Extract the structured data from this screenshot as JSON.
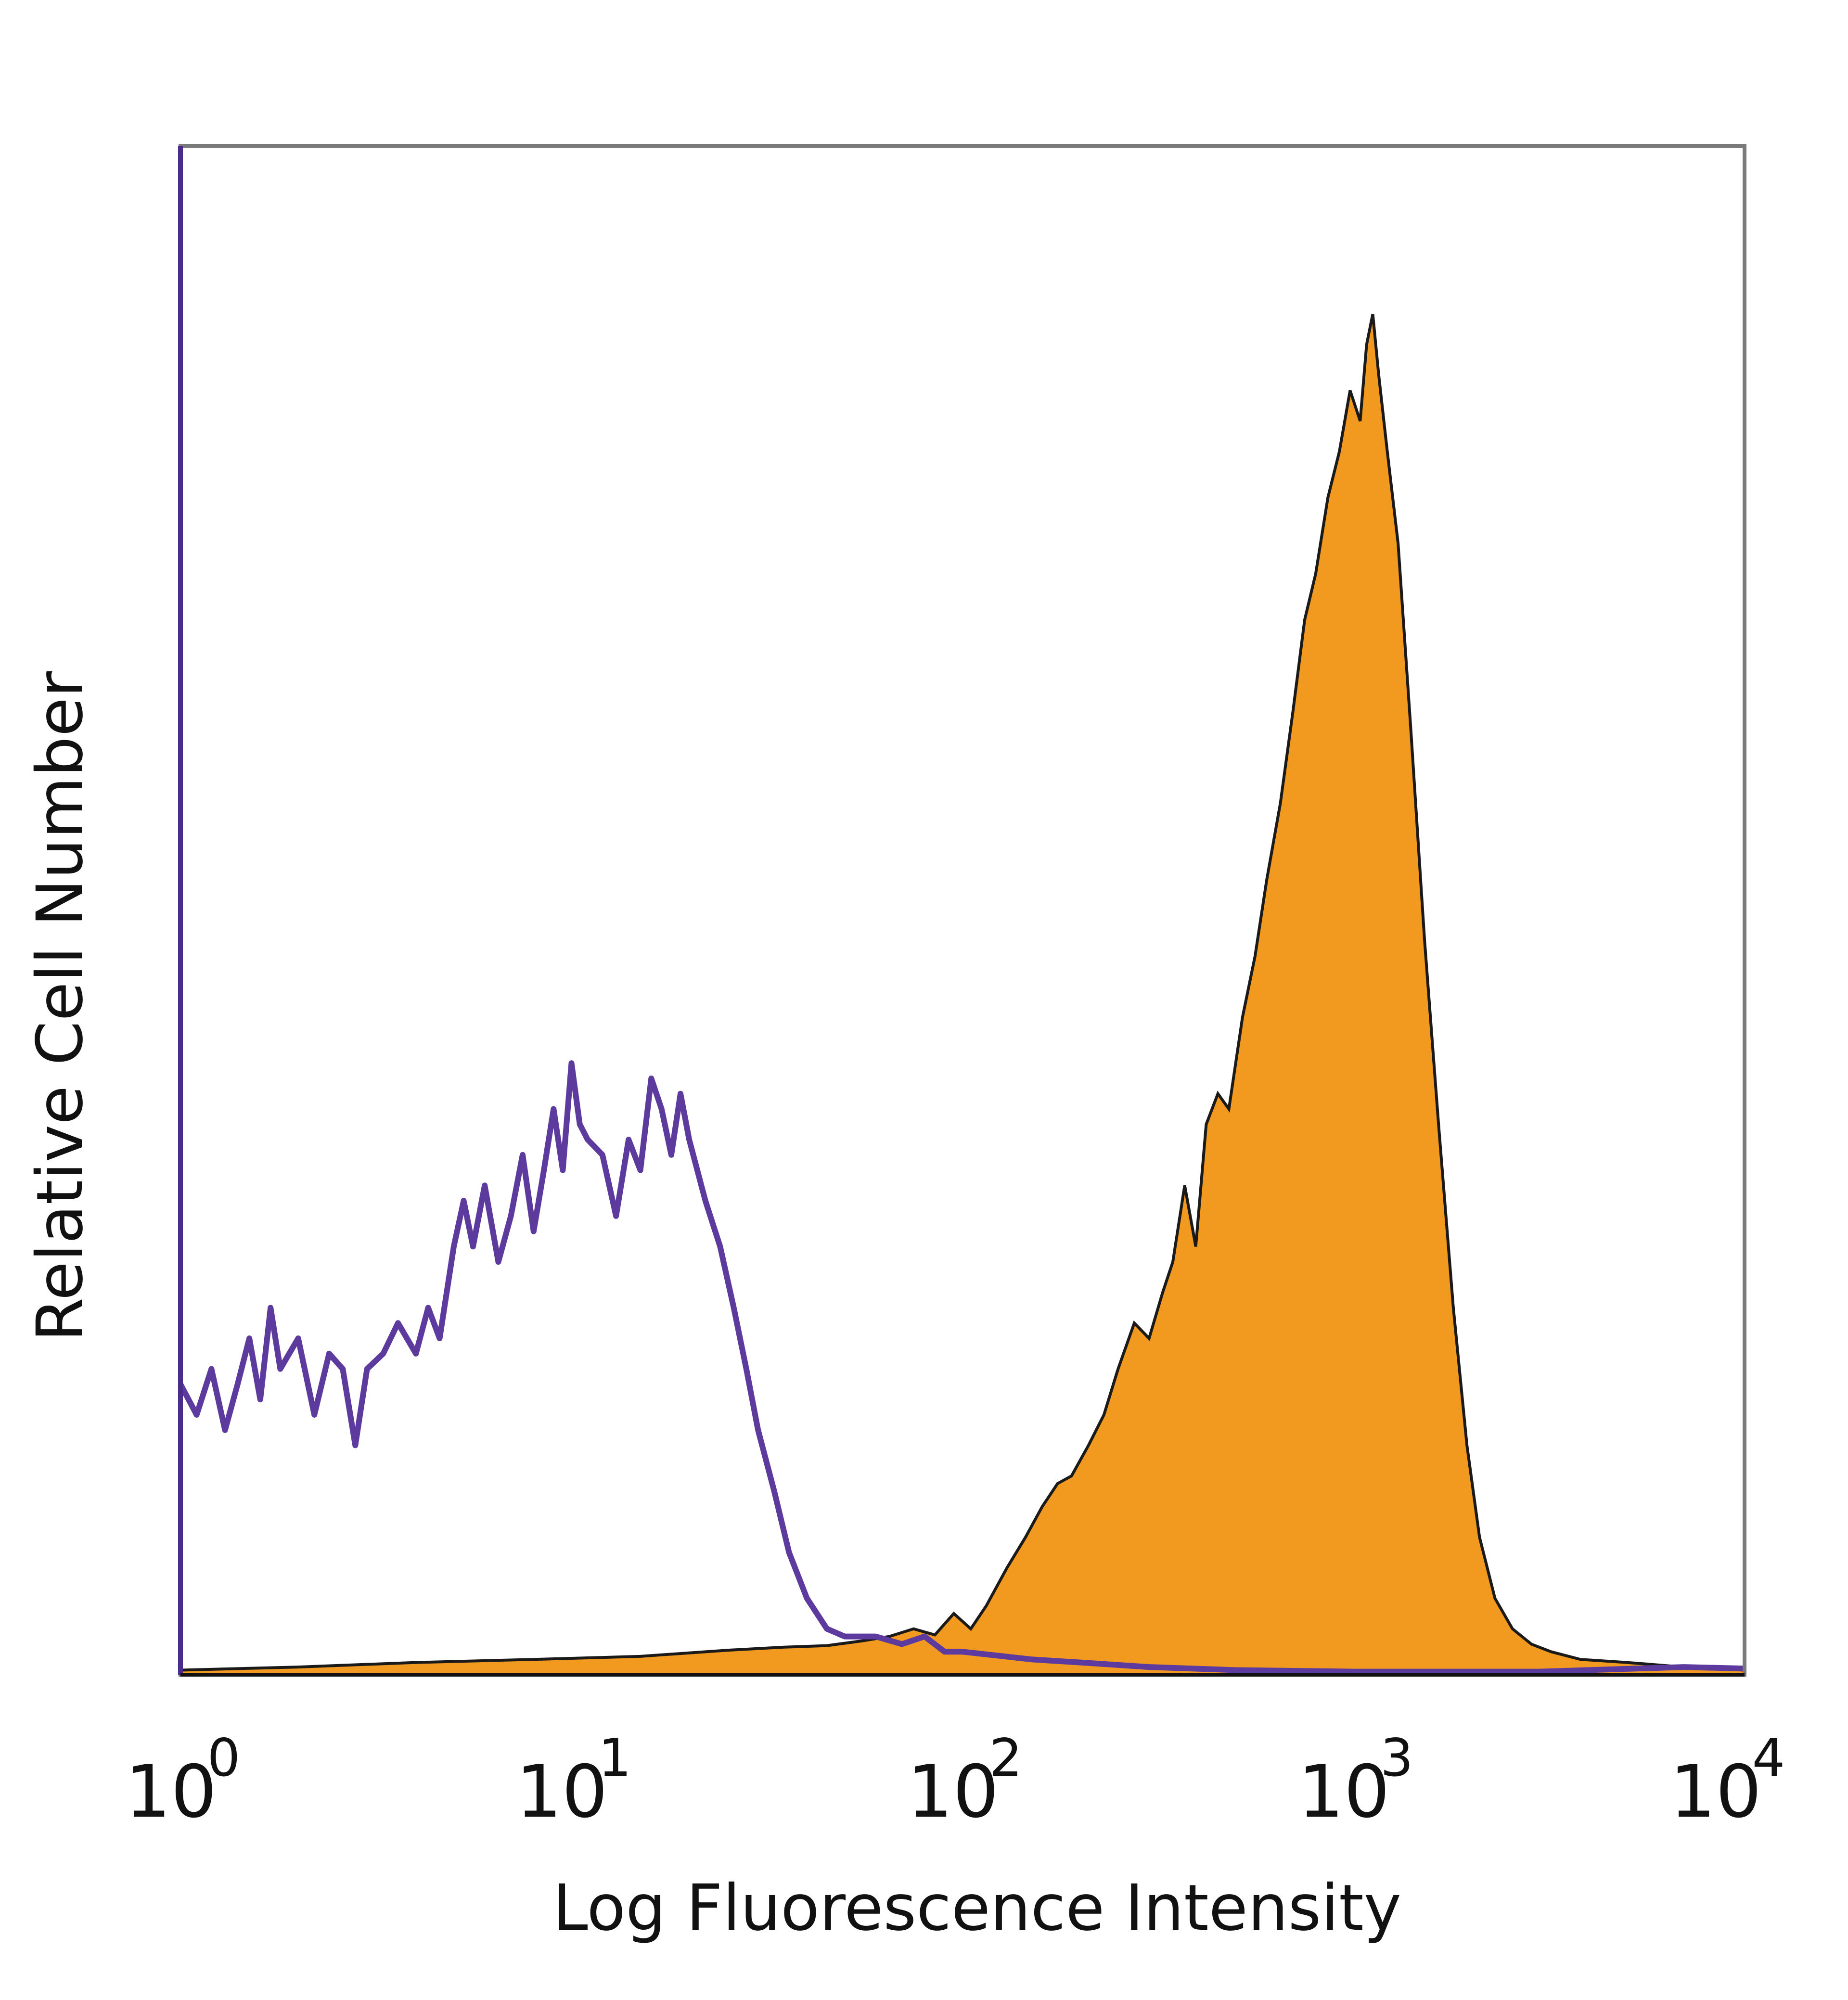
{
  "chart_data": {
    "type": "area",
    "xlabel": "Log Fluorescence Intensity",
    "ylabel": "Relative Cell Number",
    "xscale": "log",
    "xlim": [
      1,
      10000
    ],
    "ylim": [
      0,
      100
    ],
    "grid": false,
    "legend": "none",
    "x_ticks": [
      {
        "value": 1,
        "base": "10",
        "exp": "0"
      },
      {
        "value": 10,
        "base": "10",
        "exp": "1"
      },
      {
        "value": 100,
        "base": "10",
        "exp": "2"
      },
      {
        "value": 1000,
        "base": "10",
        "exp": "3"
      },
      {
        "value": 10000,
        "base": "10",
        "exp": "4"
      }
    ],
    "series": [
      {
        "style": "filled",
        "color": "#F29A1F",
        "outline_color": "#1a1a1a",
        "points": [
          [
            1.0,
            0.3
          ],
          [
            2.0,
            0.5
          ],
          [
            4.0,
            0.8
          ],
          [
            8.0,
            1.0
          ],
          [
            15.0,
            1.2
          ],
          [
            25.0,
            1.6
          ],
          [
            35.0,
            1.8
          ],
          [
            45.0,
            1.9
          ],
          [
            55.0,
            2.2
          ],
          [
            65.0,
            2.5
          ],
          [
            75.0,
            3.0
          ],
          [
            85.0,
            2.6
          ],
          [
            95.0,
            4.0
          ],
          [
            105.0,
            3.0
          ],
          [
            115.0,
            4.5
          ],
          [
            130.0,
            7.0
          ],
          [
            145.0,
            9.0
          ],
          [
            160.0,
            11.0
          ],
          [
            175.0,
            12.5
          ],
          [
            190.0,
            13.0
          ],
          [
            210.0,
            15.0
          ],
          [
            230.0,
            17.0
          ],
          [
            250.0,
            20.0
          ],
          [
            275.0,
            23.0
          ],
          [
            300.0,
            22.0
          ],
          [
            325.0,
            25.0
          ],
          [
            345.0,
            27.0
          ],
          [
            370.0,
            32.0
          ],
          [
            395.0,
            28.0
          ],
          [
            420.0,
            36.0
          ],
          [
            450.0,
            38.0
          ],
          [
            480.0,
            37.0
          ],
          [
            520.0,
            43.0
          ],
          [
            560.0,
            47.0
          ],
          [
            600.0,
            52.0
          ],
          [
            650.0,
            57.0
          ],
          [
            700.0,
            63.0
          ],
          [
            750.0,
            69.0
          ],
          [
            800.0,
            72.0
          ],
          [
            860.0,
            77.0
          ],
          [
            920.0,
            80.0
          ],
          [
            980.0,
            84.0
          ],
          [
            1040.0,
            82.0
          ],
          [
            1080.0,
            87.0
          ],
          [
            1120.0,
            89.0
          ],
          [
            1160.0,
            85.0
          ],
          [
            1220.0,
            80.0
          ],
          [
            1300.0,
            74.0
          ],
          [
            1400.0,
            62.0
          ],
          [
            1520.0,
            48.0
          ],
          [
            1650.0,
            36.0
          ],
          [
            1800.0,
            24.0
          ],
          [
            1950.0,
            15.0
          ],
          [
            2100.0,
            9.0
          ],
          [
            2300.0,
            5.0
          ],
          [
            2550.0,
            3.0
          ],
          [
            2850.0,
            2.0
          ],
          [
            3200.0,
            1.5
          ],
          [
            3800.0,
            1.0
          ],
          [
            5000.0,
            0.8
          ],
          [
            7000.0,
            0.5
          ],
          [
            10000.0,
            0.3
          ]
        ]
      },
      {
        "style": "line",
        "color": "#5C3A9E",
        "points": [
          [
            1.0,
            19.0
          ],
          [
            1.1,
            17.0
          ],
          [
            1.2,
            20.0
          ],
          [
            1.3,
            16.0
          ],
          [
            1.4,
            19.0
          ],
          [
            1.5,
            22.0
          ],
          [
            1.6,
            18.0
          ],
          [
            1.7,
            24.0
          ],
          [
            1.8,
            20.0
          ],
          [
            2.0,
            22.0
          ],
          [
            2.2,
            17.0
          ],
          [
            2.4,
            21.0
          ],
          [
            2.6,
            20.0
          ],
          [
            2.8,
            15.0
          ],
          [
            3.0,
            20.0
          ],
          [
            3.3,
            21.0
          ],
          [
            3.6,
            23.0
          ],
          [
            4.0,
            21.0
          ],
          [
            4.3,
            24.0
          ],
          [
            4.6,
            22.0
          ],
          [
            5.0,
            28.0
          ],
          [
            5.3,
            31.0
          ],
          [
            5.6,
            28.0
          ],
          [
            6.0,
            32.0
          ],
          [
            6.5,
            27.0
          ],
          [
            7.0,
            30.0
          ],
          [
            7.5,
            34.0
          ],
          [
            8.0,
            29.0
          ],
          [
            8.5,
            33.0
          ],
          [
            9.0,
            37.0
          ],
          [
            9.5,
            33.0
          ],
          [
            10.0,
            40.0
          ],
          [
            10.5,
            36.0
          ],
          [
            11.0,
            35.0
          ],
          [
            12.0,
            34.0
          ],
          [
            13.0,
            30.0
          ],
          [
            14.0,
            35.0
          ],
          [
            15.0,
            33.0
          ],
          [
            16.0,
            39.0
          ],
          [
            17.0,
            37.0
          ],
          [
            18.0,
            34.0
          ],
          [
            19.0,
            38.0
          ],
          [
            20.0,
            35.0
          ],
          [
            22.0,
            31.0
          ],
          [
            24.0,
            28.0
          ],
          [
            26.0,
            24.0
          ],
          [
            28.0,
            20.0
          ],
          [
            30.0,
            16.0
          ],
          [
            33.0,
            12.0
          ],
          [
            36.0,
            8.0
          ],
          [
            40.0,
            5.0
          ],
          [
            45.0,
            3.0
          ],
          [
            50.0,
            2.5
          ],
          [
            60.0,
            2.5
          ],
          [
            70.0,
            2.0
          ],
          [
            80.0,
            2.5
          ],
          [
            90.0,
            1.5
          ],
          [
            100.0,
            1.5
          ],
          [
            150.0,
            1.0
          ],
          [
            200.0,
            0.8
          ],
          [
            300.0,
            0.5
          ],
          [
            500.0,
            0.3
          ],
          [
            1000.0,
            0.2
          ],
          [
            3000.0,
            0.2
          ],
          [
            7000.0,
            0.5
          ],
          [
            10000.0,
            0.4
          ]
        ]
      }
    ]
  }
}
